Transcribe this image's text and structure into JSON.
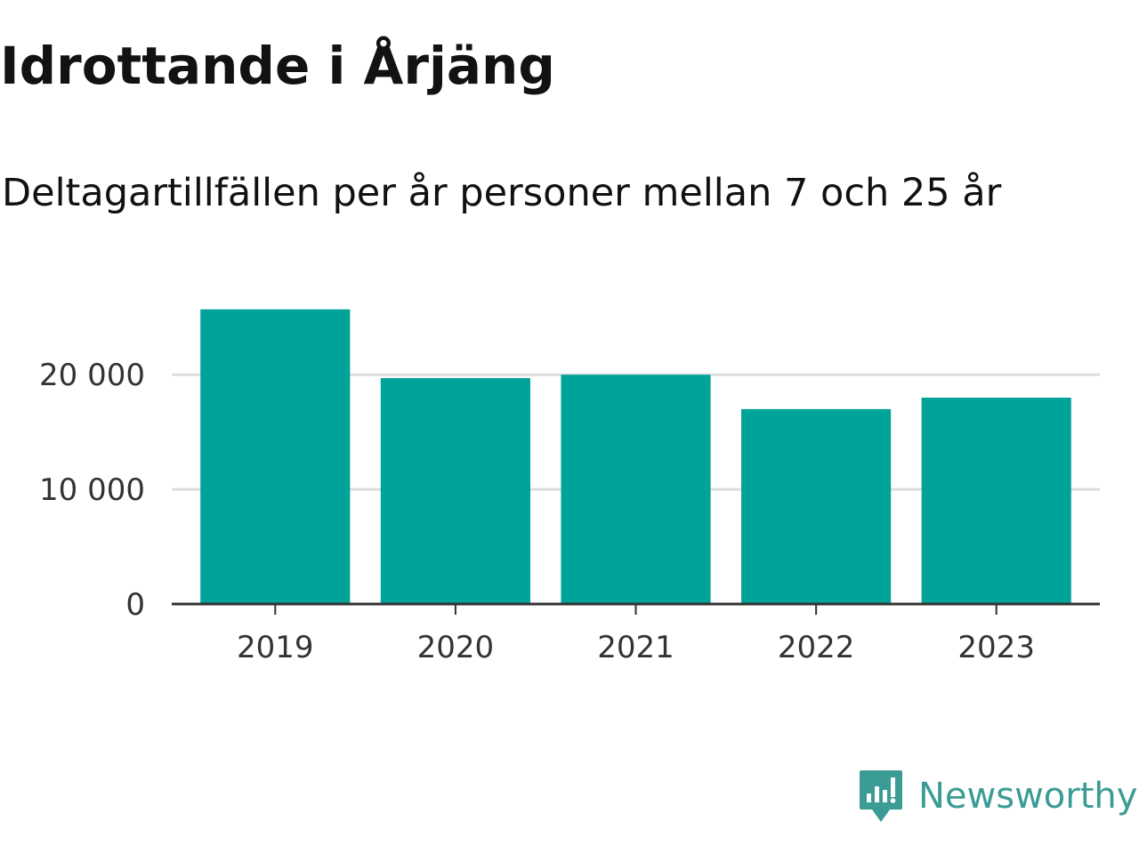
{
  "title": "Idrottande i Årjäng",
  "subtitle": "Deltagartillfällen per år personer mellan 7 och 25 år",
  "brand": {
    "name": "Newsworthy",
    "color": "#3a9c95",
    "icon": "newsworthy-logo-icon"
  },
  "colors": {
    "bar": "#00a39a",
    "grid": "#dddddd",
    "axis": "#333333"
  },
  "chart_data": {
    "type": "bar",
    "categories": [
      "2019",
      "2020",
      "2021",
      "2022",
      "2023"
    ],
    "values": [
      25700,
      19700,
      20000,
      17000,
      18000
    ],
    "ylim": [
      0,
      27000
    ],
    "yticks": [
      0,
      10000,
      20000
    ],
    "ytick_labels": [
      "0",
      "10 000",
      "20 000"
    ],
    "grid": true,
    "legend": "none"
  }
}
